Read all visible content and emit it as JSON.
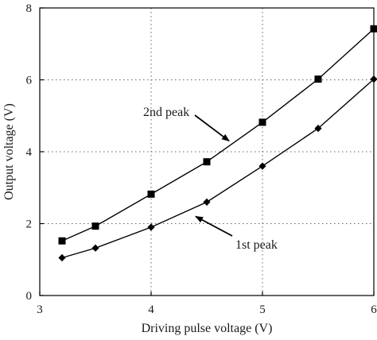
{
  "chart_data": {
    "type": "line",
    "xlabel": "Driving pulse voltage (V)",
    "ylabel": "Output voltage (V)",
    "xlim": [
      3,
      6
    ],
    "ylim": [
      0,
      8
    ],
    "xticks": [
      3,
      4,
      5,
      6
    ],
    "yticks": [
      0,
      2,
      4,
      6,
      8
    ],
    "grid": "dotted",
    "series": [
      {
        "name": "2nd peak",
        "marker": "square",
        "x": [
          3.2,
          3.5,
          4.0,
          4.5,
          5.0,
          5.5,
          6.0
        ],
        "y": [
          1.52,
          1.93,
          2.82,
          3.72,
          4.82,
          6.02,
          7.42
        ]
      },
      {
        "name": "1st peak",
        "marker": "diamond",
        "x": [
          3.2,
          3.5,
          4.0,
          4.5,
          5.0,
          5.5,
          6.0
        ],
        "y": [
          1.05,
          1.32,
          1.9,
          2.6,
          3.6,
          4.65,
          6.02
        ]
      }
    ],
    "annotations": [
      {
        "text": "2nd peak",
        "series": 0,
        "arrow_to": [
          4.7,
          4.3
        ]
      },
      {
        "text": "1st peak",
        "series": 1,
        "arrow_to": [
          4.4,
          2.2
        ]
      }
    ],
    "colors": {
      "line": "#000000",
      "grid": "#666666"
    }
  }
}
